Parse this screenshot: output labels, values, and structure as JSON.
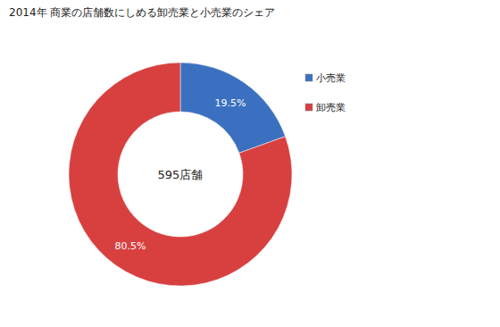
{
  "chart_data": {
    "type": "pie",
    "title": "2014年 商業の店舗数にしめる卸売業と小売業のシェア",
    "categories": [
      "小売業",
      "卸売業"
    ],
    "values": [
      19.5,
      80.5
    ],
    "value_labels": [
      "19.5%",
      "80.5%"
    ],
    "colors": [
      "#3b70c0",
      "#d84040"
    ],
    "data_labels": true,
    "legend": "right",
    "annotations": [
      "595店舗"
    ]
  }
}
